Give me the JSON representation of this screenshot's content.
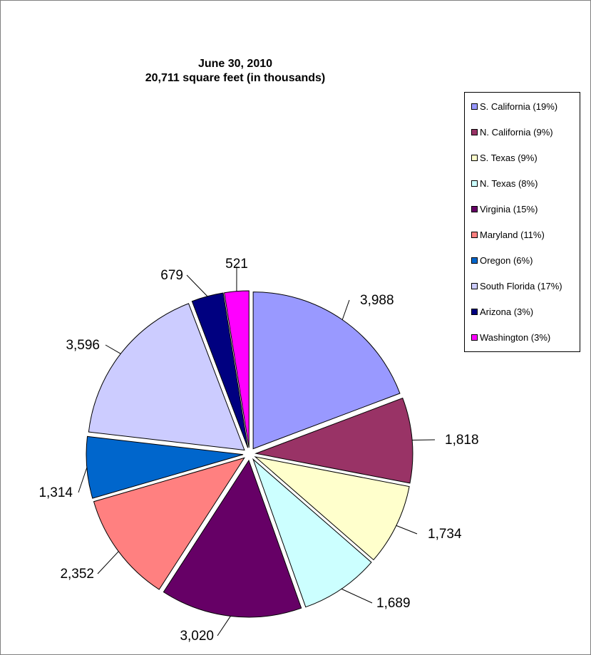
{
  "chart_data": {
    "type": "pie",
    "title": "June 30, 2010",
    "subtitle": "20,711 square feet (in thousands)",
    "legend_position": "right",
    "exploded": true,
    "categories": [
      "S. California",
      "N. California",
      "S. Texas",
      "N. Texas",
      "Virginia",
      "Maryland",
      "Oregon",
      "South Florida",
      "Arizona",
      "Washington"
    ],
    "values": [
      3988,
      1818,
      1734,
      1689,
      3020,
      2352,
      1314,
      3596,
      679,
      521
    ],
    "value_labels": [
      "3,988",
      "1,818",
      "1,734",
      "1,689",
      "3,020",
      "2,352",
      "1,314",
      "3,596",
      "679",
      "521"
    ],
    "legend_labels": [
      "S. California (19%)",
      "N. California (9%)",
      "S. Texas (9%)",
      "N. Texas (8%)",
      "Virginia (15%)",
      "Maryland (11%)",
      "Oregon (6%)",
      "South Florida (17%)",
      "Arizona (3%)",
      "Washington (3%)"
    ],
    "colors": [
      "#9999FF",
      "#993366",
      "#FFFFCC",
      "#CCFFFF",
      "#660066",
      "#FF8080",
      "#0066CC",
      "#CCCCFF",
      "#000080",
      "#FF00FF"
    ]
  }
}
